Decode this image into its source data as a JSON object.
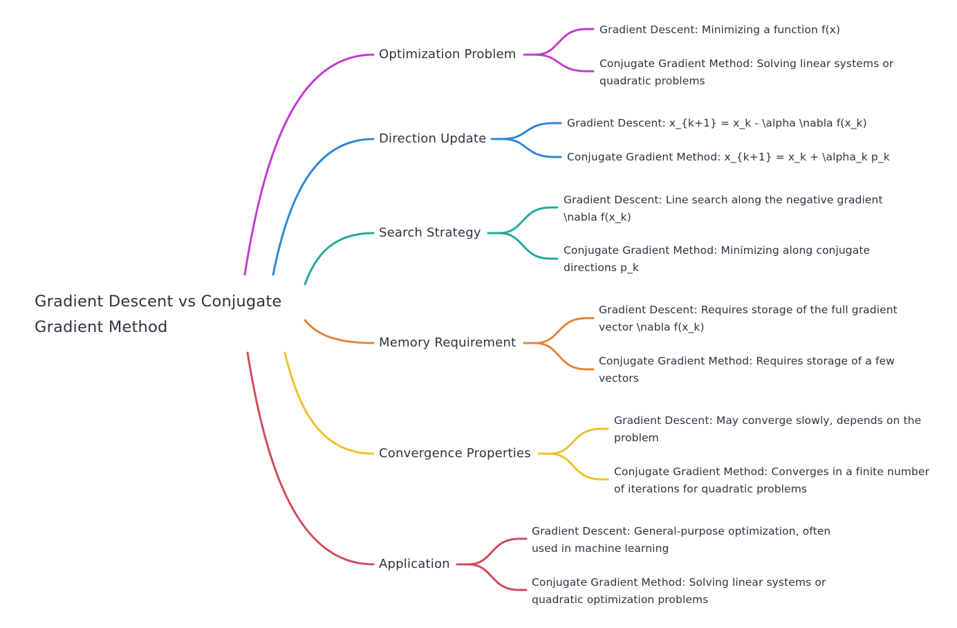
{
  "root": {
    "label": "Gradient Descent vs Conjugate Gradient Method"
  },
  "branches": [
    {
      "label": "Optimization Problem",
      "color": "#c03bd0",
      "children": [
        "Gradient Descent: Minimizing a function f(x)",
        "Conjugate Gradient Method: Solving linear systems or quadratic problems"
      ]
    },
    {
      "label": "Direction Update",
      "color": "#2e87d4",
      "children": [
        "Gradient Descent: x_{k+1} = x_k - \\alpha \\nabla f(x_k)",
        "Conjugate Gradient Method: x_{k+1} = x_k + \\alpha_k p_k"
      ]
    },
    {
      "label": "Search Strategy",
      "color": "#22a99b",
      "children": [
        "Gradient Descent: Line search along the negative gradient \\nabla f(x_k)",
        "Conjugate Gradient Method: Minimizing along conjugate directions p_k"
      ]
    },
    {
      "label": "Memory Requirement",
      "color": "#e4853a",
      "children": [
        "Gradient Descent: Requires storage of the full gradient vector \\nabla f(x_k)",
        "Conjugate Gradient Method: Requires storage of a few vectors"
      ]
    },
    {
      "label": "Convergence Properties",
      "color": "#f1c02c",
      "children": [
        "Gradient Descent: May converge slowly, depends on the problem",
        "Conjugate Gradient Method: Converges in a finite number of iterations for quadratic problems"
      ]
    },
    {
      "label": "Application",
      "color": "#d04a5c",
      "children": [
        "Gradient Descent: General-purpose optimization, often used in machine learning",
        "Conjugate Gradient Method: Solving linear systems or quadratic optimization problems"
      ]
    }
  ]
}
